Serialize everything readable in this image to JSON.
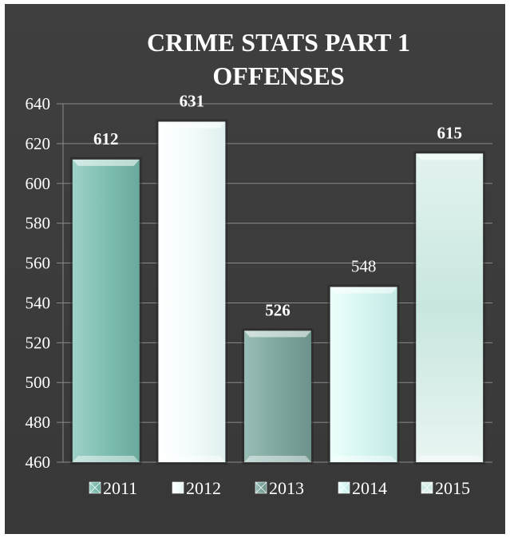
{
  "chart_data": {
    "type": "bar",
    "title_line1": "CRIME STATS PART 1",
    "title_line2": "OFFENSES",
    "xlabel": "",
    "ylabel": "",
    "categories": [
      "2011",
      "2012",
      "2013",
      "2014",
      "2015"
    ],
    "values": [
      612,
      631,
      526,
      548,
      615
    ],
    "data_labels": [
      "612",
      "631",
      "526",
      "548",
      "615"
    ],
    "label_bold": [
      true,
      true,
      true,
      false,
      true
    ],
    "ylim": [
      460,
      640
    ],
    "yticks": [
      460,
      480,
      500,
      520,
      540,
      560,
      580,
      600,
      620,
      640
    ],
    "grid": true,
    "legend_position": "bottom",
    "colors": {
      "background_outer": "#3a3a3a",
      "background_inner": "#4a4a4a",
      "gridline": "#8a8a8a",
      "text": "#ffffff",
      "bars": [
        "#7fbfb2",
        "#f2fbfb",
        "#7fa79f",
        "#d6f6f2",
        "#c8e6df"
      ]
    }
  }
}
